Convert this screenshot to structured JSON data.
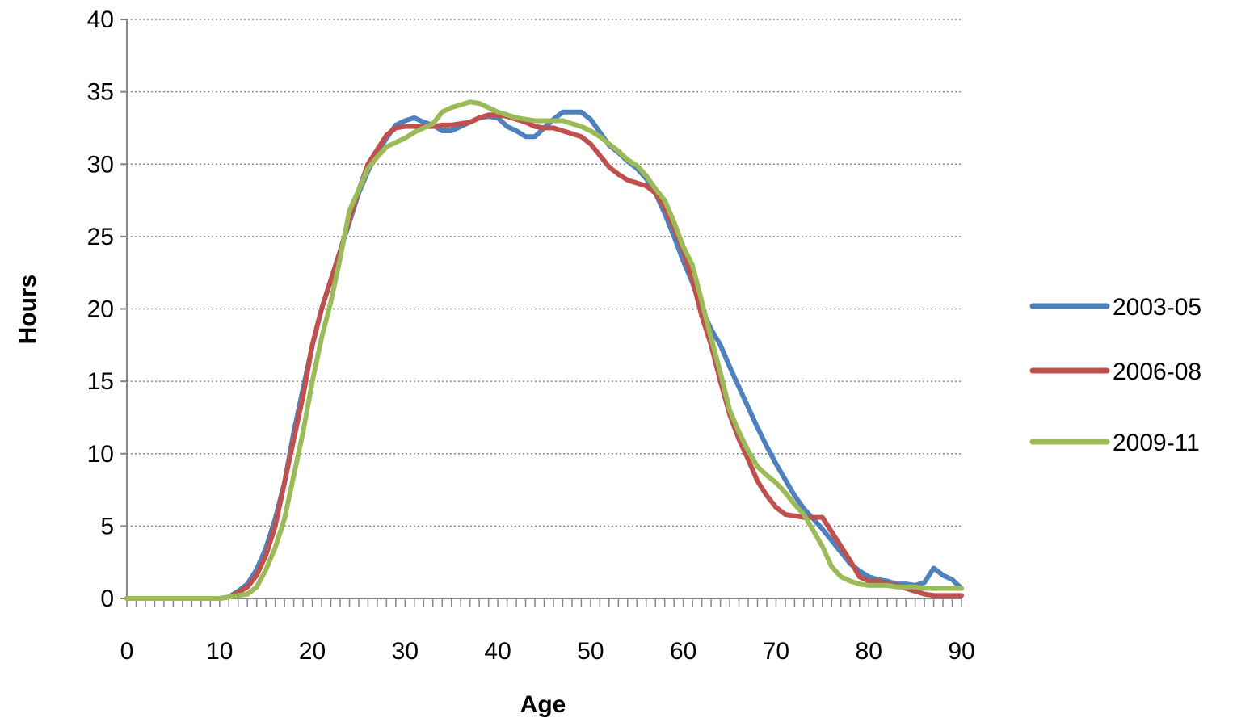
{
  "chart_data": {
    "type": "line",
    "title": "",
    "xlabel": "Age",
    "ylabel": "Hours",
    "xlim": [
      0,
      90
    ],
    "ylim": [
      0,
      40
    ],
    "x_ticks": [
      0,
      10,
      20,
      30,
      40,
      50,
      60,
      70,
      80,
      90
    ],
    "y_ticks": [
      0,
      5,
      10,
      15,
      20,
      25,
      30,
      35,
      40
    ],
    "grid": "horizontal dotted",
    "legend": "right",
    "x": [
      0,
      1,
      2,
      3,
      4,
      5,
      6,
      7,
      8,
      9,
      10,
      11,
      12,
      13,
      14,
      15,
      16,
      17,
      18,
      19,
      20,
      21,
      22,
      23,
      24,
      25,
      26,
      27,
      28,
      29,
      30,
      31,
      32,
      33,
      34,
      35,
      36,
      37,
      38,
      39,
      40,
      41,
      42,
      43,
      44,
      45,
      46,
      47,
      48,
      49,
      50,
      51,
      52,
      53,
      54,
      55,
      56,
      57,
      58,
      59,
      60,
      61,
      62,
      63,
      64,
      65,
      66,
      67,
      68,
      69,
      70,
      71,
      72,
      73,
      74,
      75,
      76,
      77,
      78,
      79,
      80,
      81,
      82,
      83,
      84,
      85,
      86,
      87,
      88,
      89,
      90
    ],
    "series": [
      {
        "name": "2003-05",
        "color": "#4f81bd",
        "values": [
          0,
          0,
          0,
          0,
          0,
          0,
          0,
          0,
          0,
          0,
          0,
          0.1,
          0.5,
          1.0,
          2.0,
          3.5,
          5.5,
          8.0,
          11.5,
          14.5,
          17.5,
          20.0,
          22.0,
          24.0,
          26.0,
          28.0,
          29.5,
          30.8,
          31.8,
          32.7,
          33.0,
          33.2,
          32.9,
          32.7,
          32.3,
          32.3,
          32.6,
          32.9,
          33.2,
          33.3,
          33.2,
          32.6,
          32.3,
          31.9,
          31.9,
          32.5,
          33.1,
          33.6,
          33.6,
          33.6,
          33.1,
          32.2,
          31.3,
          30.8,
          30.2,
          29.7,
          29.0,
          28.0,
          26.6,
          25.0,
          23.3,
          21.8,
          20.0,
          18.6,
          17.5,
          16.0,
          14.6,
          13.2,
          11.8,
          10.5,
          9.3,
          8.2,
          7.1,
          6.2,
          5.5,
          4.8,
          4.0,
          3.2,
          2.4,
          1.9,
          1.5,
          1.3,
          1.2,
          1.0,
          1.0,
          0.9,
          1.1,
          2.1,
          1.6,
          1.3,
          0.7
        ]
      },
      {
        "name": "2006-08",
        "color": "#c0504d",
        "values": [
          0,
          0,
          0,
          0,
          0,
          0,
          0,
          0,
          0,
          0,
          0,
          0.1,
          0.4,
          0.8,
          1.6,
          3.0,
          5.0,
          8.0,
          11.0,
          14.0,
          17.5,
          20.0,
          22.0,
          24.0,
          26.2,
          28.2,
          30.0,
          31.0,
          32.0,
          32.5,
          32.6,
          32.6,
          32.6,
          32.6,
          32.7,
          32.7,
          32.8,
          32.9,
          33.2,
          33.4,
          33.4,
          33.3,
          33.1,
          32.9,
          32.6,
          32.5,
          32.5,
          32.3,
          32.1,
          31.9,
          31.4,
          30.6,
          29.8,
          29.3,
          28.9,
          28.7,
          28.5,
          28.0,
          27.0,
          25.6,
          24.0,
          22.0,
          19.5,
          17.5,
          15.0,
          12.7,
          11.0,
          9.6,
          8.1,
          7.1,
          6.3,
          5.8,
          5.7,
          5.6,
          5.6,
          5.6,
          4.6,
          3.6,
          2.6,
          1.5,
          1.2,
          1.2,
          1.0,
          0.9,
          0.7,
          0.5,
          0.3,
          0.2,
          0.2,
          0.2,
          0.2
        ]
      },
      {
        "name": "2009-11",
        "color": "#9bbb59",
        "values": [
          0,
          0,
          0,
          0,
          0,
          0,
          0,
          0,
          0,
          0,
          0,
          0.1,
          0.2,
          0.3,
          0.8,
          2.0,
          3.5,
          5.5,
          8.5,
          11.5,
          15.0,
          18.0,
          20.5,
          23.5,
          26.8,
          28.2,
          29.7,
          30.5,
          31.2,
          31.5,
          31.8,
          32.2,
          32.5,
          32.8,
          33.6,
          33.9,
          34.1,
          34.3,
          34.2,
          33.9,
          33.6,
          33.4,
          33.2,
          33.1,
          33.0,
          33.0,
          33.0,
          33.0,
          32.8,
          32.6,
          32.3,
          31.9,
          31.4,
          30.9,
          30.3,
          29.9,
          29.2,
          28.3,
          27.5,
          26.0,
          24.3,
          23.0,
          20.5,
          18.0,
          15.6,
          13.0,
          11.5,
          10.2,
          9.1,
          8.5,
          8.0,
          7.3,
          6.5,
          5.8,
          4.7,
          3.6,
          2.2,
          1.5,
          1.2,
          1.0,
          0.9,
          0.9,
          0.9,
          0.8,
          0.8,
          0.8,
          0.7,
          0.7,
          0.7,
          0.7,
          0.7
        ]
      }
    ]
  }
}
